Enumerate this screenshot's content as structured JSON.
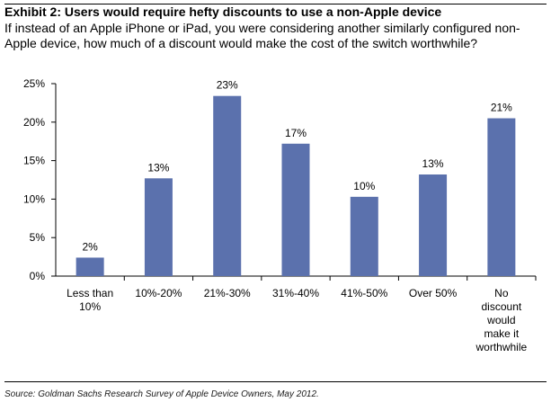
{
  "title": "Exhibit 2: Users would require hefty discounts to use a non-Apple device",
  "subtitle": "If instead of an Apple iPhone or iPad, you were considering another similarly configured non-Apple device, how much of a discount would make the cost of the switch worthwhile?",
  "source": "Source: Goldman Sachs Research Survey of Apple Device Owners, May 2012.",
  "colors": {
    "bar": "#5b71ad",
    "axis": "#000000"
  },
  "chart_data": {
    "type": "bar",
    "title": "Exhibit 2: Users would require hefty discounts to use a non-Apple device",
    "xlabel": "",
    "ylabel": "",
    "ylim": [
      0,
      0.25
    ],
    "y_tick_labels": [
      "0%",
      "5%",
      "10%",
      "15%",
      "20%",
      "25%"
    ],
    "y_ticks": [
      0,
      0.05,
      0.1,
      0.15,
      0.2,
      0.25
    ],
    "grid": false,
    "legend": "none",
    "categories": [
      [
        "Less than",
        "10%"
      ],
      [
        "10%-20%"
      ],
      [
        "21%-30%"
      ],
      [
        "31%-40%"
      ],
      [
        "41%-50%"
      ],
      [
        "Over 50%"
      ],
      [
        "No",
        "discount",
        "would",
        "make it",
        "worthwhile"
      ]
    ],
    "values": [
      0.024,
      0.127,
      0.234,
      0.172,
      0.103,
      0.132,
      0.205
    ],
    "data_labels": [
      "2%",
      "13%",
      "23%",
      "17%",
      "10%",
      "13%",
      "21%"
    ]
  }
}
